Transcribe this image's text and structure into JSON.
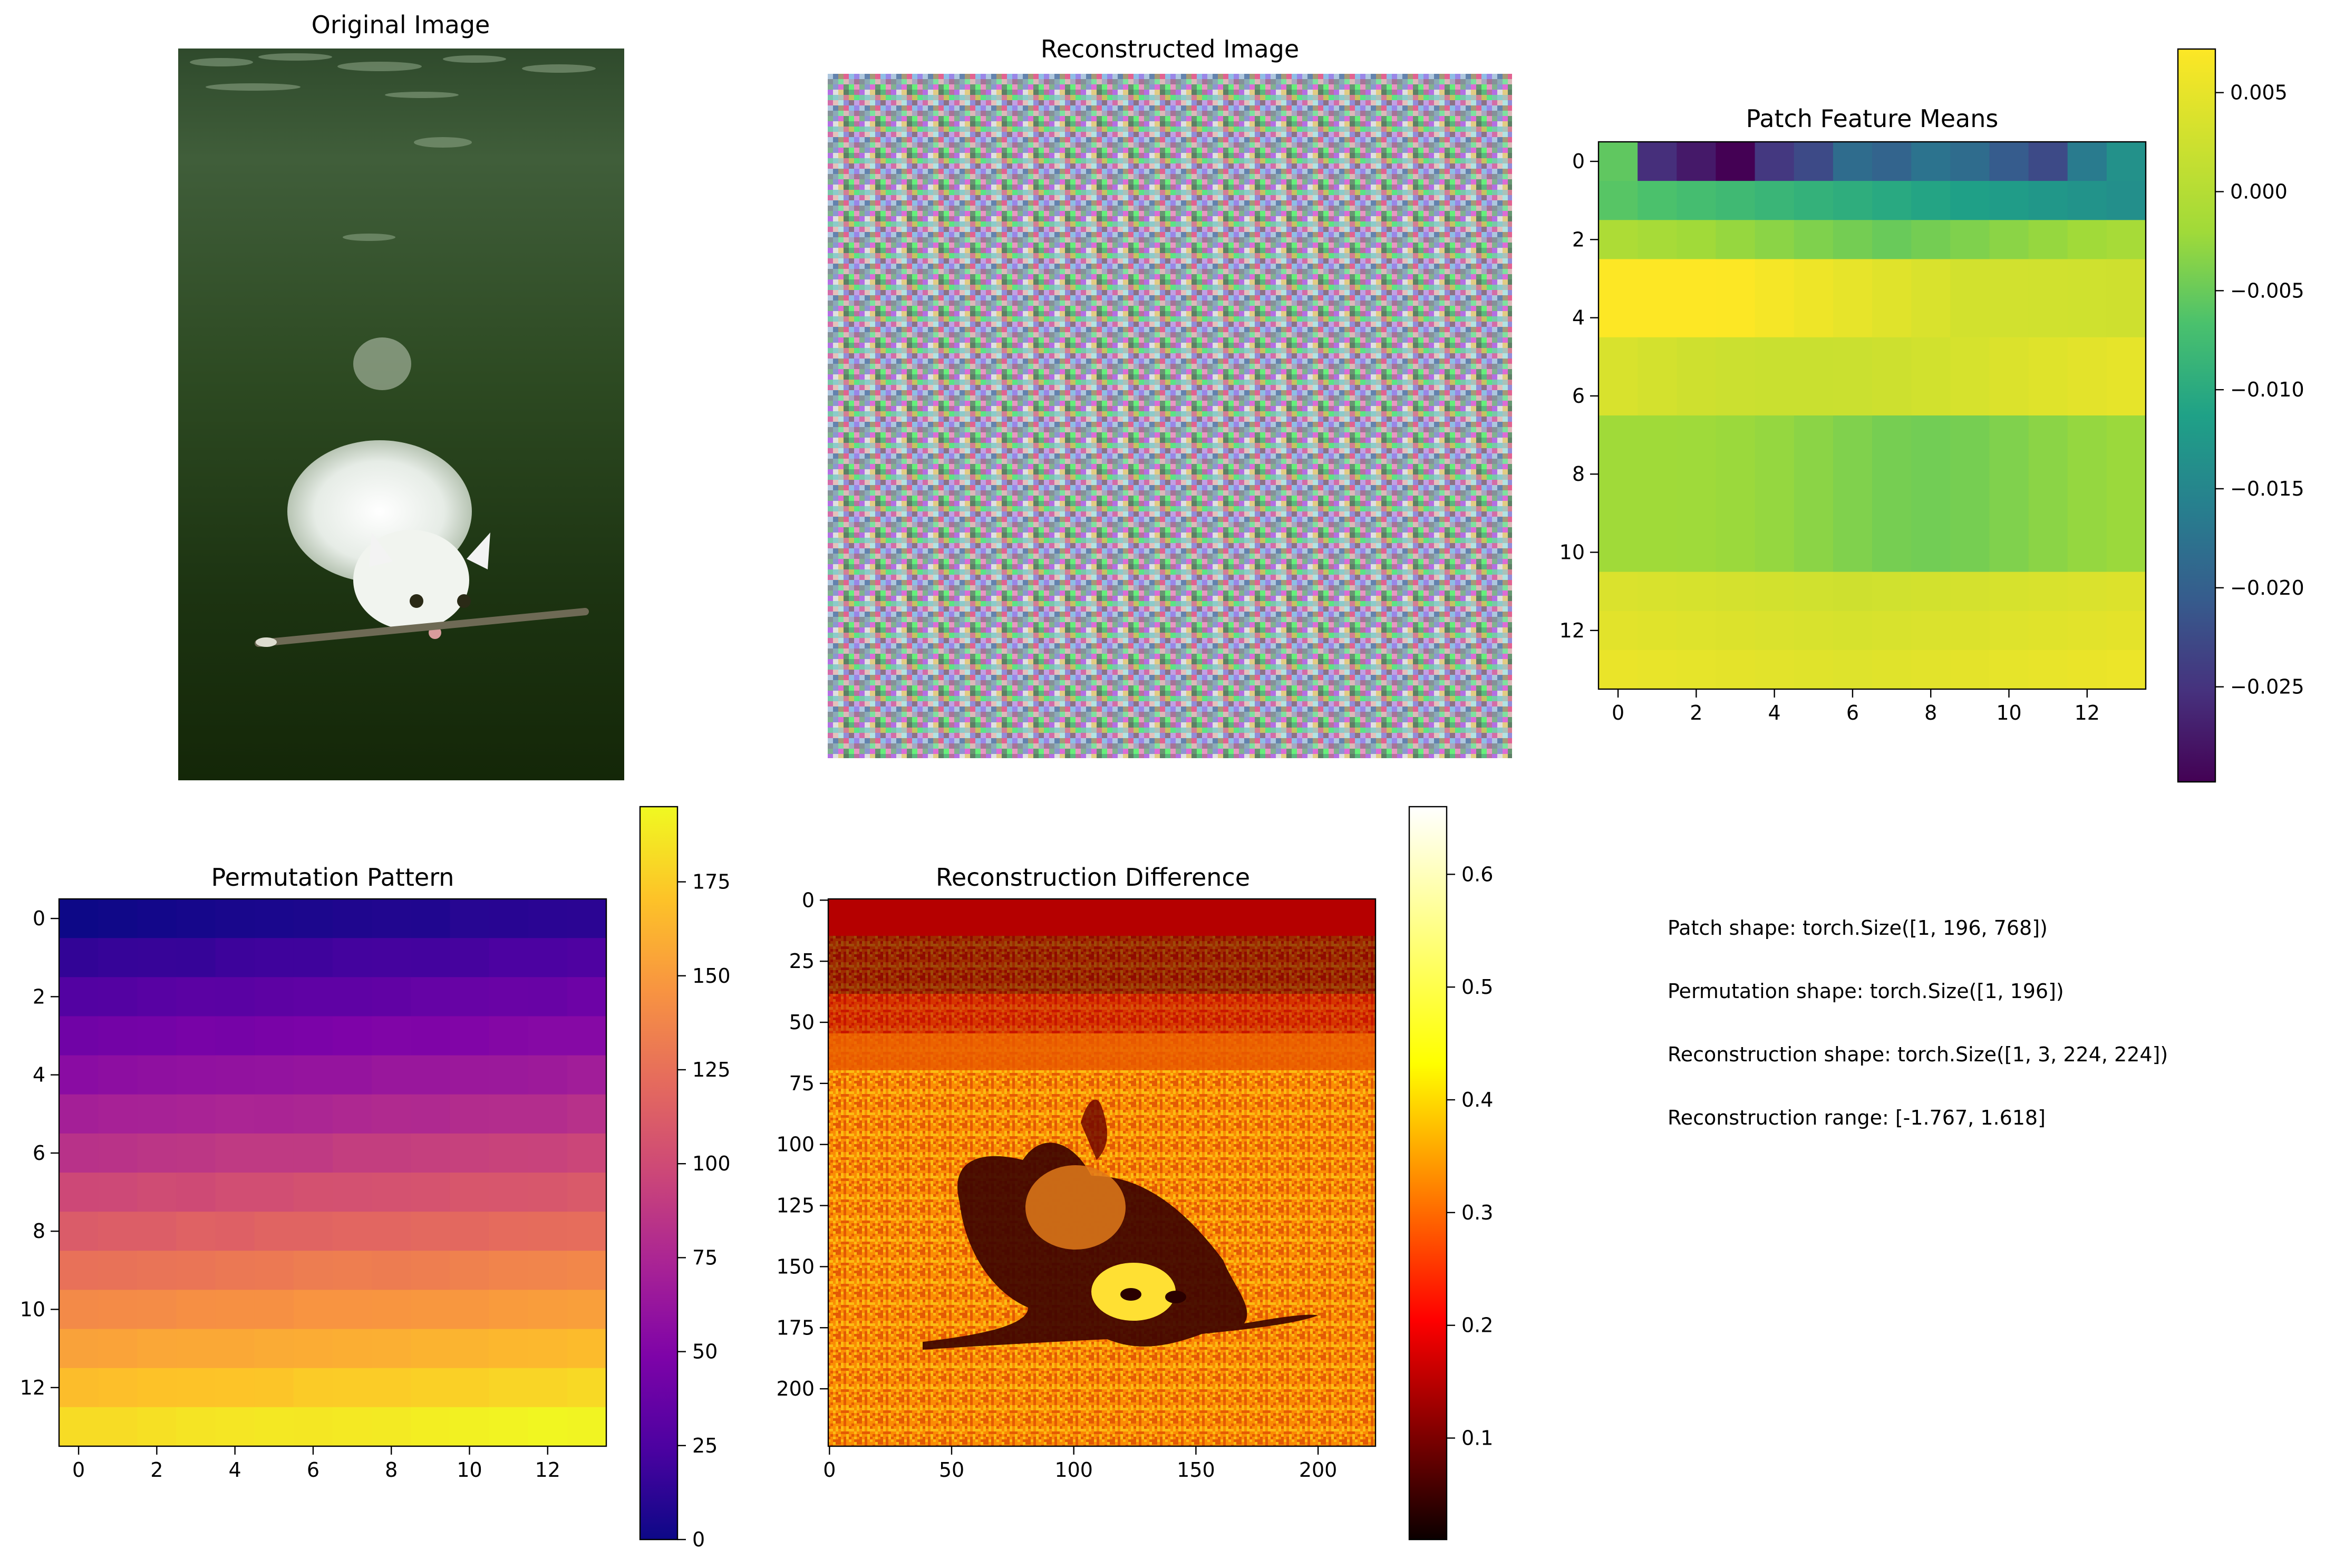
{
  "chart_data": [
    {
      "type": "image",
      "title": "Original Image",
      "axis": "off"
    },
    {
      "type": "image",
      "title": "Reconstructed Image",
      "axis": "off"
    },
    {
      "type": "heatmap",
      "title": "Patch Feature Means",
      "colormap": "viridis",
      "xticks": [
        0,
        2,
        4,
        6,
        8,
        10,
        12
      ],
      "yticks": [
        0,
        2,
        4,
        6,
        8,
        10,
        12
      ],
      "xlim": [
        -0.5,
        13.5
      ],
      "ylim": [
        13.5,
        -0.5
      ],
      "colorbar": {
        "range": [
          -0.0298,
          0.0072
        ],
        "ticks": [
          0.005,
          0.0,
          -0.005,
          -0.01,
          -0.015,
          -0.02,
          -0.025
        ],
        "tick_labels": [
          "0.005",
          "0.000",
          "−0.005",
          "−0.010",
          "−0.015",
          "−0.020",
          "−0.025"
        ]
      }
    },
    {
      "type": "heatmap",
      "title": "Permutation Pattern",
      "colormap": "plasma",
      "xticks": [
        0,
        2,
        4,
        6,
        8,
        10,
        12
      ],
      "yticks": [
        0,
        2,
        4,
        6,
        8,
        10,
        12
      ],
      "xlim": [
        -0.5,
        13.5
      ],
      "ylim": [
        13.5,
        -0.5
      ],
      "colorbar": {
        "range": [
          0,
          195
        ],
        "ticks": [
          0,
          25,
          50,
          75,
          100,
          125,
          150,
          175
        ],
        "tick_labels": [
          "0",
          "25",
          "50",
          "75",
          "100",
          "125",
          "150",
          "175"
        ]
      }
    },
    {
      "type": "heatmap",
      "title": "Reconstruction Difference",
      "colormap": "hot",
      "xticks": [
        0,
        50,
        100,
        150,
        200
      ],
      "yticks": [
        0,
        25,
        50,
        75,
        100,
        125,
        150,
        175,
        200
      ],
      "xlim": [
        -0.5,
        223.5
      ],
      "ylim": [
        223.5,
        -0.5
      ],
      "colorbar": {
        "range": [
          0.01,
          0.66
        ],
        "ticks": [
          0.1,
          0.2,
          0.3,
          0.4,
          0.5,
          0.6
        ],
        "tick_labels": [
          "0.1",
          "0.2",
          "0.3",
          "0.4",
          "0.5",
          "0.6"
        ]
      }
    }
  ],
  "info_lines": [
    "Patch shape: torch.Size([1, 196, 768])",
    "Permutation shape: torch.Size([1, 196])",
    "Reconstruction shape: torch.Size([1, 3, 224, 224])",
    "Reconstruction range: [-1.767, 1.618]"
  ]
}
